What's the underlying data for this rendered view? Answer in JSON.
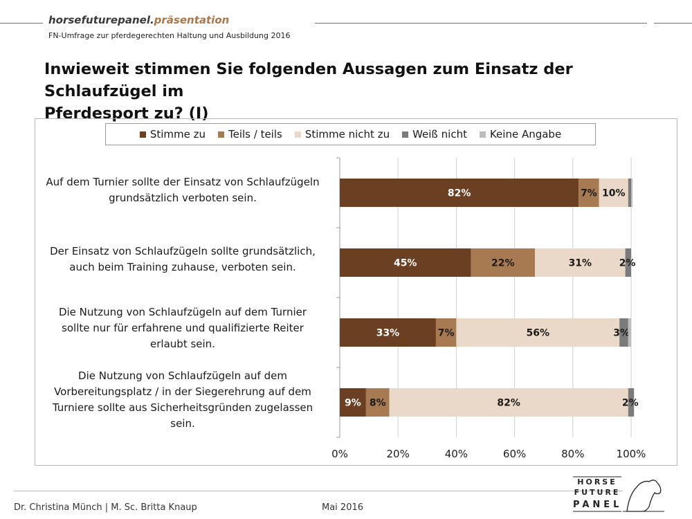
{
  "header": {
    "brand_main": "horsefuturepanel.",
    "brand_accent": "präsentation",
    "subtitle": "FN-Umfrage zur pferdegerechten Haltung und Ausbildung 2016"
  },
  "title_line1": "Inwieweit stimmen Sie folgenden Aussagen zum Einsatz der Schlaufzügel im",
  "title_line2": "Pferdesport zu? (I)",
  "footer": {
    "authors": "Dr. Christina Münch | M. Sc. Britta Knaup",
    "date": "Mai 2016"
  },
  "logo": {
    "line1": "HORSE",
    "line2": "FUTURE",
    "line3": "PANEL"
  },
  "colors": {
    "stimme_zu": "#6b3f22",
    "teils": "#a87a52",
    "nicht_zu": "#ead9c8",
    "weiss_nicht": "#7b7b7b",
    "keine_angabe": "#bdbdbd"
  },
  "chart_data": {
    "type": "bar",
    "orientation": "horizontal",
    "stacked": true,
    "percent_stacked": true,
    "legend_position": "top",
    "grid": true,
    "xlim": [
      0,
      100
    ],
    "x_ticks": [
      "0%",
      "20%",
      "40%",
      "60%",
      "80%",
      "100%"
    ],
    "categories": [
      [
        "Auf dem Turnier sollte der Einsatz von Schlaufzügeln",
        "grundsätzlich verboten sein."
      ],
      [
        "Der Einsatz von Schlaufzügeln sollte grundsätzlich,",
        "auch beim Training zuhause, verboten sein."
      ],
      [
        "Die Nutzung von Schlaufzügeln auf dem Turnier",
        "sollte nur für erfahrene und qualifizierte Reiter",
        "erlaubt sein."
      ],
      [
        "Die Nutzung von Schlaufzügeln auf dem",
        "Vorbereitungsplatz / in der Siegerehrung auf dem",
        "Turniere sollte aus Sicherheitsgründen zugelassen",
        "sein."
      ]
    ],
    "series": [
      {
        "name": "Stimme zu",
        "color": "#6b3f22",
        "values": [
          82,
          45,
          33,
          9
        ],
        "labels": [
          "82%",
          "45%",
          "33%",
          "9%"
        ]
      },
      {
        "name": "Teils / teils",
        "color": "#a87a52",
        "values": [
          7,
          22,
          7,
          8
        ],
        "labels": [
          "7%",
          "22%",
          "7%",
          "8%"
        ]
      },
      {
        "name": "Stimme nicht zu",
        "color": "#ead9c8",
        "values": [
          10,
          31,
          56,
          82
        ],
        "labels": [
          "10%",
          "31%",
          "56%",
          "82%"
        ]
      },
      {
        "name": "Weiß nicht",
        "color": "#7b7b7b",
        "values": [
          1,
          2,
          3,
          2
        ],
        "labels": [
          "",
          "2%",
          "3%",
          "2%"
        ]
      },
      {
        "name": "Keine Angabe",
        "color": "#bdbdbd",
        "values": [
          0.5,
          0,
          1,
          0
        ],
        "labels": [
          "",
          "",
          "",
          ""
        ]
      }
    ]
  }
}
